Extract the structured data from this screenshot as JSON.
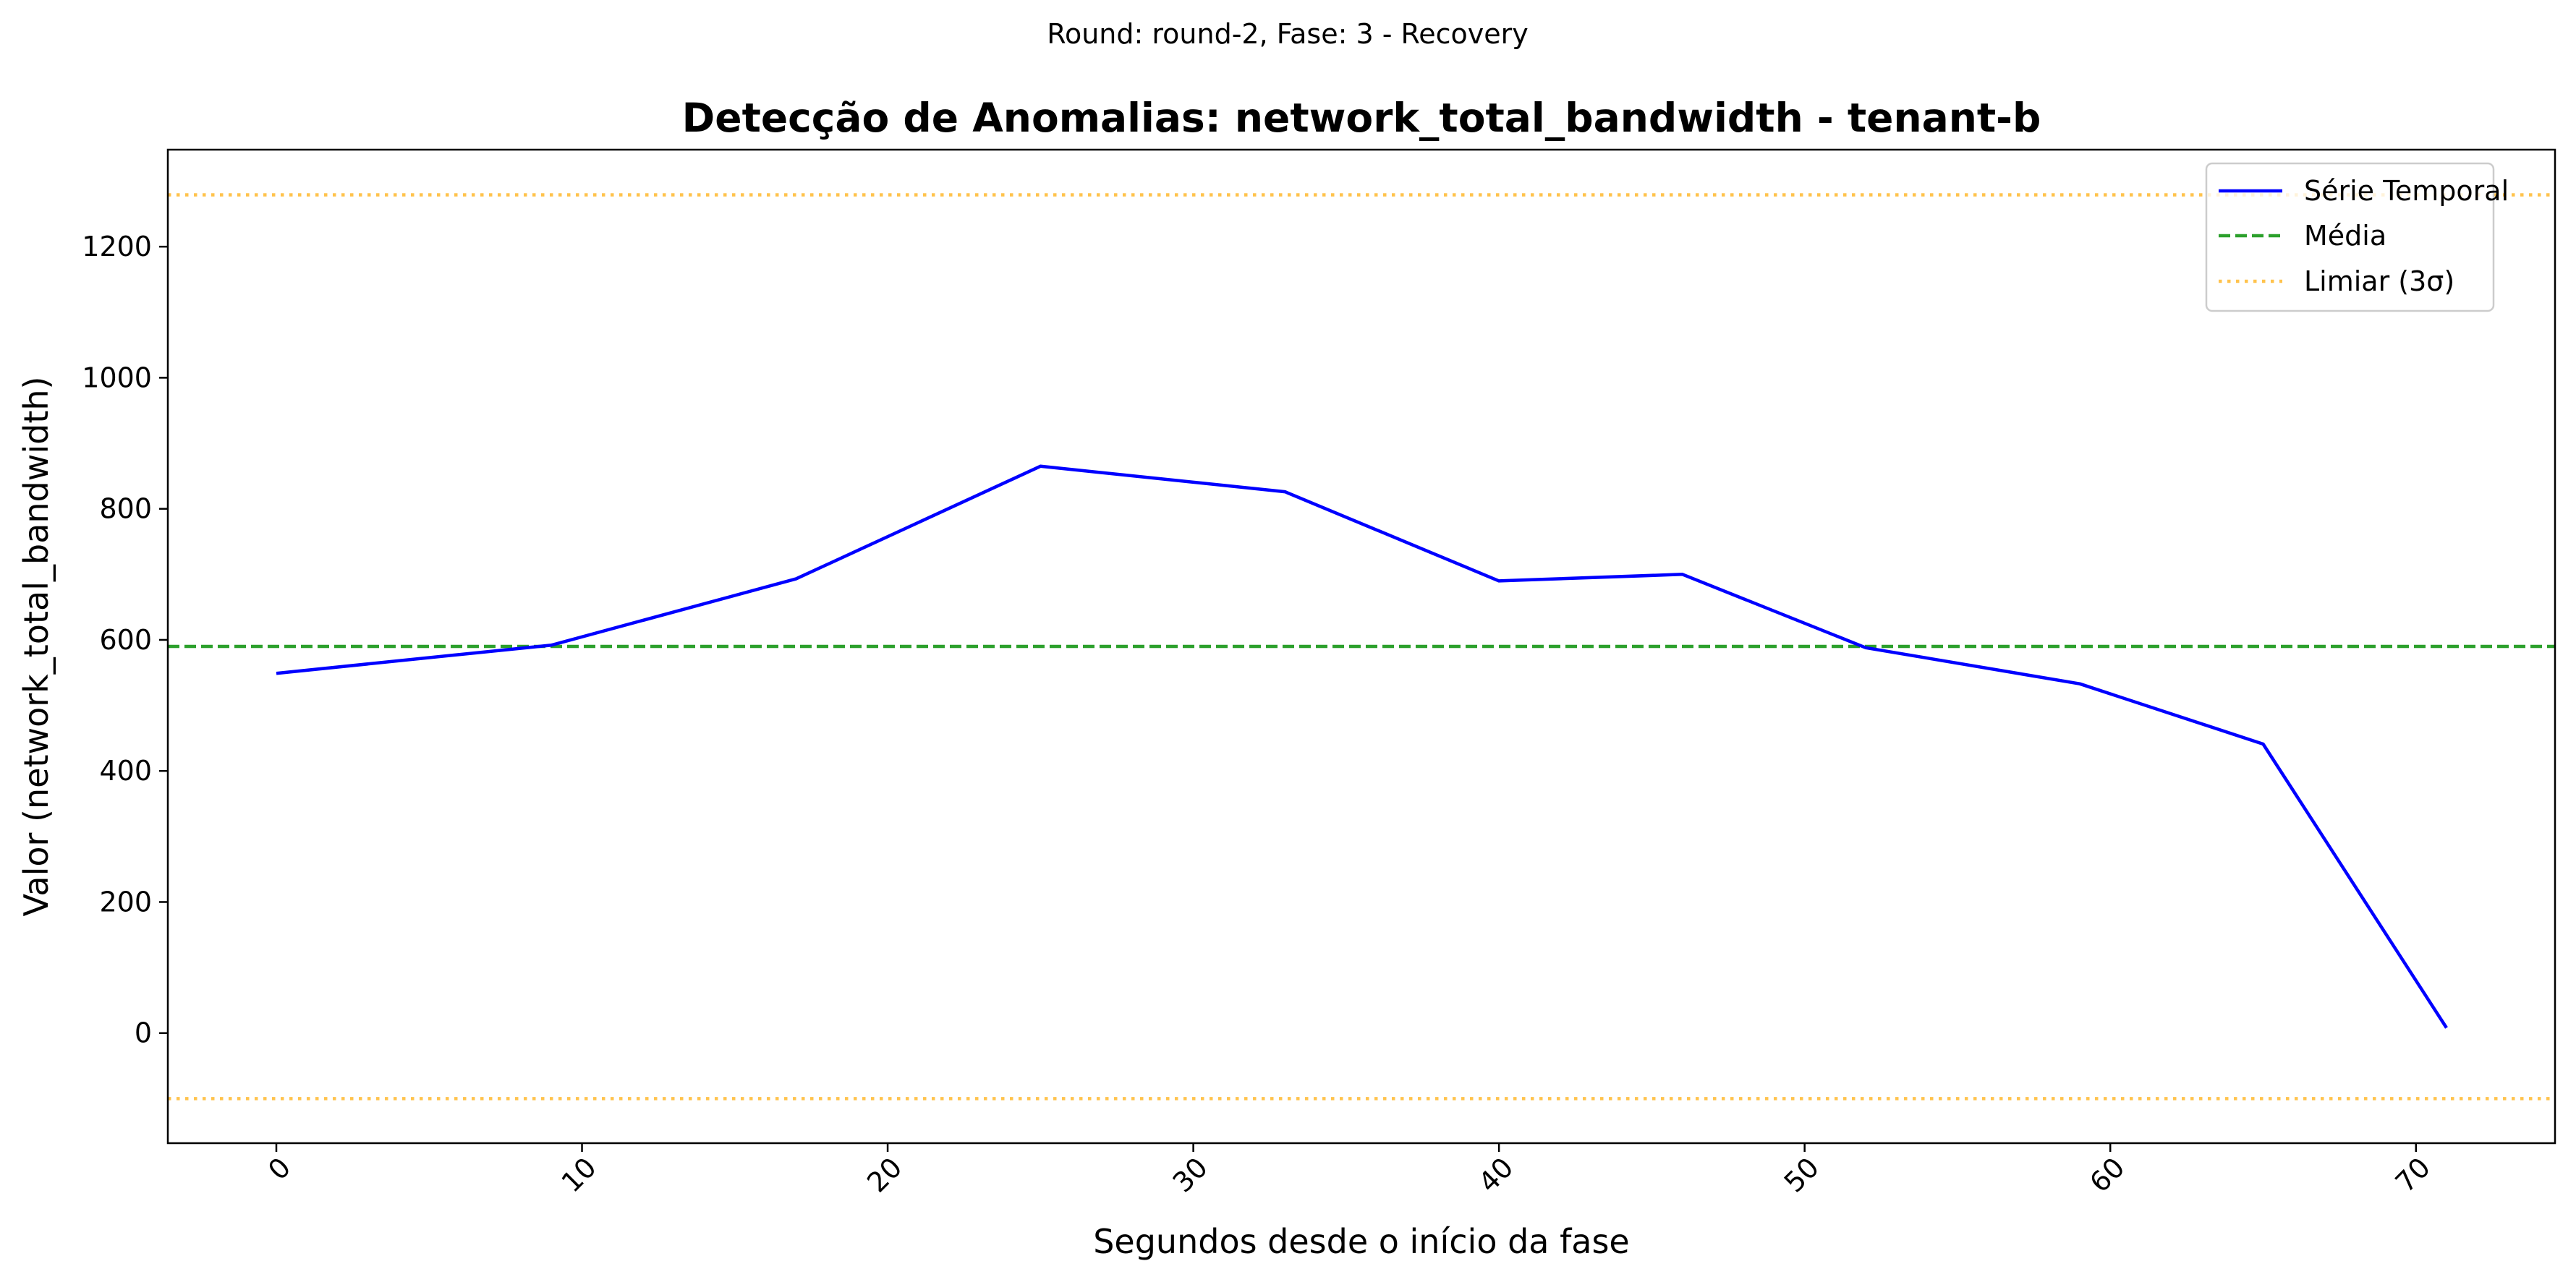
{
  "suptitle": "Round: round-2, Fase: 3 - Recovery",
  "chart_data": {
    "type": "line",
    "title": "Detecção de Anomalias: network_total_bandwidth - tenant-b",
    "xlabel": "Segundos desde o início da fase",
    "ylabel": "Valor (network_total_bandwidth)",
    "xlim": [
      -3.55,
      74.55
    ],
    "ylim": [
      -168,
      1348
    ],
    "x_ticks": [
      0,
      10,
      20,
      30,
      40,
      50,
      60,
      70
    ],
    "y_ticks": [
      0,
      200,
      400,
      600,
      800,
      1000,
      1200
    ],
    "grid": false,
    "legend_position": "top-right",
    "series": [
      {
        "name": "Série Temporal",
        "style": "solid",
        "color": "#0000ff",
        "x": [
          0,
          9,
          17,
          25,
          33,
          40,
          46,
          52,
          59,
          65,
          71
        ],
        "y": [
          549,
          592,
          693,
          865,
          826,
          690,
          700,
          588,
          533,
          441,
          8
        ]
      }
    ],
    "reference_lines": [
      {
        "name": "Média",
        "style": "dashed",
        "color": "#2ca02c",
        "y": 590
      },
      {
        "name": "Limiar (3σ)",
        "style": "dotted",
        "color": "#ffc34d",
        "y": 1279
      },
      {
        "name": "Limiar (3σ)",
        "style": "dotted",
        "color": "#ffc34d",
        "y": -100
      }
    ],
    "legend": [
      "Série Temporal",
      "Média",
      "Limiar (3σ)"
    ]
  }
}
